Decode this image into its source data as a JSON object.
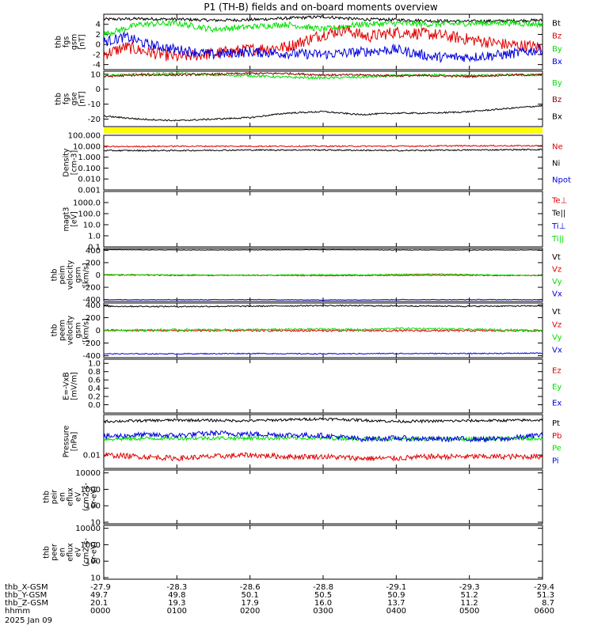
{
  "title": "P1 (TH-B) fields and on-board moments overview",
  "colors": {
    "black": "#000000",
    "red": "#e00000",
    "green": "#00e000",
    "blue": "#0000e0",
    "darkred": "#8b0000",
    "yellow": "#ffff00"
  },
  "chart_data": [
    {
      "type": "line",
      "ylabel": [
        "thb",
        "fgs",
        "gsm",
        "[nT]"
      ],
      "ylim": [
        -5,
        6
      ],
      "yticks": [
        -4,
        -2,
        0,
        2,
        4
      ],
      "xlim": [
        0,
        6
      ],
      "legend": [
        {
          "name": "Bt",
          "color": "black"
        },
        {
          "name": "Bz",
          "color": "red"
        },
        {
          "name": "By",
          "color": "green"
        },
        {
          "name": "Bx",
          "color": "blue"
        }
      ],
      "series": [
        {
          "name": "Bt",
          "color": "black",
          "x": [
            0,
            0.5,
            1,
            1.5,
            2,
            2.5,
            3,
            3.5,
            4,
            4.5,
            5,
            5.5,
            6
          ],
          "y": [
            5.0,
            5.1,
            5.0,
            4.8,
            4.9,
            5.2,
            5.5,
            5.0,
            4.9,
            4.7,
            4.6,
            4.7,
            4.8
          ],
          "noise": 0.3
        },
        {
          "name": "Bz",
          "color": "red",
          "x": [
            0,
            0.3,
            0.6,
            1,
            1.5,
            2,
            2.5,
            3,
            3.3,
            3.6,
            4,
            4.5,
            5,
            5.5,
            6
          ],
          "y": [
            -2.0,
            -0.5,
            -1.5,
            -2.5,
            -1.8,
            -1.0,
            -0.5,
            2.0,
            3.0,
            1.5,
            2.5,
            2.0,
            1.0,
            0.0,
            -0.5
          ],
          "noise": 1.2
        },
        {
          "name": "By",
          "color": "green",
          "x": [
            0,
            0.5,
            1,
            1.5,
            2,
            2.5,
            3,
            3.5,
            4,
            4.5,
            5,
            5.5,
            6
          ],
          "y": [
            2.0,
            4.0,
            4.2,
            3.0,
            3.5,
            4.0,
            3.0,
            4.0,
            4.2,
            4.0,
            4.2,
            4.3,
            4.0
          ],
          "noise": 0.6
        },
        {
          "name": "Bx",
          "color": "blue",
          "x": [
            0,
            0.3,
            0.6,
            1,
            1.5,
            2,
            2.5,
            3,
            3.5,
            4,
            4.5,
            5,
            5.5,
            6
          ],
          "y": [
            0.5,
            1.5,
            0.0,
            -1.0,
            -2.0,
            -1.5,
            -1.8,
            -2.0,
            -1.5,
            -1.0,
            -2.5,
            -2.5,
            -2.0,
            -1.0
          ],
          "noise": 1.0
        }
      ]
    },
    {
      "type": "line",
      "ylabel": [
        "thb",
        "fgs",
        "gse",
        "[nT]"
      ],
      "ylim": [
        -25,
        12
      ],
      "yticks": [
        -20,
        -10,
        0,
        10
      ],
      "xlim": [
        0,
        6
      ],
      "legend": [
        {
          "name": "By",
          "color": "green"
        },
        {
          "name": "Bz",
          "color": "darkred"
        },
        {
          "name": "Bx",
          "color": "black"
        }
      ],
      "series": [
        {
          "name": "By",
          "color": "green",
          "x": [
            0,
            0.5,
            1,
            1.5,
            2,
            2.5,
            3,
            3.5,
            4,
            4.5,
            5,
            5.5,
            6
          ],
          "y": [
            9.0,
            10.0,
            10.5,
            9.5,
            9.0,
            8.0,
            7.5,
            8.0,
            9.0,
            9.5,
            9.0,
            9.5,
            9.5
          ],
          "noise": 0.8
        },
        {
          "name": "Bz",
          "color": "darkred",
          "x": [
            0,
            0.5,
            1,
            1.5,
            2,
            2.5,
            3,
            3.5,
            4,
            4.5,
            5,
            5.5,
            6
          ],
          "y": [
            8.5,
            9.5,
            9.5,
            10.0,
            10.5,
            10.5,
            9.5,
            9.5,
            9.0,
            9.0,
            8.5,
            9.5,
            9.5
          ],
          "noise": 0.7
        },
        {
          "name": "Bx",
          "color": "black",
          "x": [
            0,
            0.5,
            1,
            1.5,
            2,
            2.5,
            3,
            3.5,
            4,
            4.5,
            5,
            5.5,
            6
          ],
          "y": [
            -18,
            -20,
            -21,
            -20,
            -19,
            -16,
            -15,
            -17,
            -16,
            -16,
            -15,
            -13,
            -11
          ],
          "noise": 0.5
        }
      ]
    },
    {
      "type": "line",
      "scale": "log",
      "ylabel": [
        "Density",
        "[cm-3]"
      ],
      "ylim": [
        0.001,
        100
      ],
      "ytick_labels": [
        "0.001",
        "0.010",
        "0.100",
        "1.000",
        "10.000",
        "100.000"
      ],
      "xlim": [
        0,
        6
      ],
      "legend": [
        {
          "name": "Ne",
          "color": "red"
        },
        {
          "name": "Ni",
          "color": "black"
        },
        {
          "name": "Npot",
          "color": "blue"
        }
      ],
      "series": [
        {
          "name": "Ne",
          "color": "red",
          "x": [
            0,
            1,
            2,
            3,
            4,
            5,
            6
          ],
          "y": [
            9,
            10,
            10,
            10,
            10,
            11,
            11
          ],
          "noise": 0.06
        },
        {
          "name": "Ni",
          "color": "black",
          "x": [
            0,
            1,
            2,
            3,
            4,
            5,
            6
          ],
          "y": [
            4,
            4,
            4.5,
            4.5,
            4,
            4.5,
            5
          ],
          "noise": 0.06
        }
      ]
    },
    {
      "type": "line",
      "scale": "log",
      "ylabel": [
        "magt3",
        "[eV]"
      ],
      "ylim": [
        0.1,
        10000
      ],
      "ytick_labels": [
        "0.1",
        "1.0",
        "10.0",
        "100.0",
        "1000.0"
      ],
      "xlim": [
        0,
        6
      ],
      "legend": [
        {
          "name": "Te⊥",
          "color": "red"
        },
        {
          "name": "Te||",
          "color": "black"
        },
        {
          "name": "Ti⊥",
          "color": "blue"
        },
        {
          "name": "Ti||",
          "color": "green"
        }
      ],
      "series": []
    },
    {
      "type": "line",
      "ylabel": [
        "thb",
        "peim",
        "velocity",
        "gsm",
        "[km/s]"
      ],
      "ylim": [
        -430,
        430
      ],
      "yticks": [
        -400,
        -200,
        0,
        200,
        400
      ],
      "xlim": [
        0,
        6
      ],
      "legend": [
        {
          "name": "Vt",
          "color": "black"
        },
        {
          "name": "Vz",
          "color": "red"
        },
        {
          "name": "Vy",
          "color": "green"
        },
        {
          "name": "Vx",
          "color": "blue"
        }
      ],
      "series": [
        {
          "name": "Vt",
          "color": "black",
          "x": [
            0,
            1,
            2,
            3,
            4,
            5,
            6
          ],
          "y": [
            410,
            405,
            405,
            410,
            405,
            405,
            405
          ],
          "noise": 4
        },
        {
          "name": "Vz",
          "color": "red",
          "x": [
            0,
            1,
            2,
            3,
            4,
            5,
            6
          ],
          "y": [
            0,
            -5,
            -5,
            -10,
            -5,
            -5,
            -10
          ],
          "noise": 8
        },
        {
          "name": "Vy",
          "color": "green",
          "x": [
            0,
            1,
            2,
            3,
            3.5,
            4,
            4.5,
            5,
            6
          ],
          "y": [
            5,
            0,
            -5,
            5,
            0,
            10,
            15,
            5,
            -10
          ],
          "noise": 8
        },
        {
          "name": "Vx",
          "color": "blue",
          "x": [
            0,
            1,
            2,
            3,
            4,
            5,
            6
          ],
          "y": [
            -400,
            -402,
            -400,
            -405,
            -400,
            -400,
            -400
          ],
          "noise": 5
        }
      ]
    },
    {
      "type": "line",
      "ylabel": [
        "thb",
        "peem",
        "velocity",
        "gsm",
        "[km/s]"
      ],
      "ylim": [
        -430,
        430
      ],
      "yticks": [
        -400,
        -200,
        0,
        200,
        400
      ],
      "xlim": [
        0,
        6
      ],
      "legend": [
        {
          "name": "Vt",
          "color": "black"
        },
        {
          "name": "Vz",
          "color": "red"
        },
        {
          "name": "Vy",
          "color": "green"
        },
        {
          "name": "Vx",
          "color": "blue"
        }
      ],
      "series": [
        {
          "name": "Vt",
          "color": "black",
          "x": [
            0,
            1,
            2,
            3,
            4,
            5,
            6
          ],
          "y": [
            380,
            375,
            380,
            390,
            385,
            380,
            385
          ],
          "noise": 10
        },
        {
          "name": "Vz",
          "color": "red",
          "x": [
            0,
            1,
            2,
            3,
            4,
            5,
            6
          ],
          "y": [
            0,
            -5,
            -5,
            -5,
            -5,
            -5,
            -5
          ],
          "noise": 15
        },
        {
          "name": "Vy",
          "color": "green",
          "x": [
            0,
            1,
            2,
            3,
            3.5,
            4,
            4.5,
            5,
            6
          ],
          "y": [
            0,
            10,
            10,
            20,
            10,
            30,
            25,
            15,
            0
          ],
          "noise": 15
        },
        {
          "name": "Vx",
          "color": "blue",
          "x": [
            0,
            1,
            2,
            3,
            4,
            5,
            6
          ],
          "y": [
            -370,
            -370,
            -365,
            -370,
            -365,
            -365,
            -360
          ],
          "noise": 8
        }
      ]
    },
    {
      "type": "line",
      "ylabel": [
        "E=-VxB",
        "[mV/m]"
      ],
      "ylim": [
        -0.2,
        1.1
      ],
      "yticks": [
        0.0,
        0.2,
        0.4,
        0.6,
        0.8,
        1.0
      ],
      "ytick_labels": [
        "0.0",
        "0.2",
        "0.4",
        "0.6",
        "0.8",
        "1.0"
      ],
      "xlim": [
        0,
        6
      ],
      "legend": [
        {
          "name": "Ez",
          "color": "red"
        },
        {
          "name": "Ey",
          "color": "green"
        },
        {
          "name": "Ex",
          "color": "blue"
        }
      ],
      "series": []
    },
    {
      "type": "line",
      "scale": "log",
      "ylabel": [
        "Pressure",
        "[nPa]"
      ],
      "ylim": [
        0.004,
        0.16
      ],
      "ytick_labels": [
        "0.01"
      ],
      "xlim": [
        0,
        6
      ],
      "legend": [
        {
          "name": "Pt",
          "color": "black"
        },
        {
          "name": "Pb",
          "color": "red"
        },
        {
          "name": "Pe",
          "color": "green"
        },
        {
          "name": "Pi",
          "color": "blue"
        }
      ],
      "series": [
        {
          "name": "Pt",
          "color": "black",
          "x": [
            0,
            1,
            2,
            3,
            4,
            5,
            6
          ],
          "y": [
            0.1,
            0.11,
            0.105,
            0.12,
            0.1,
            0.105,
            0.11
          ],
          "noise": 0.04
        },
        {
          "name": "Pb",
          "color": "red",
          "x": [
            0,
            0.5,
            1,
            1.5,
            2,
            2.5,
            3,
            3.5,
            4,
            4.5,
            5,
            5.5,
            6
          ],
          "y": [
            0.01,
            0.009,
            0.008,
            0.009,
            0.01,
            0.009,
            0.009,
            0.008,
            0.008,
            0.009,
            0.009,
            0.009,
            0.009
          ],
          "noise": 0.08
        },
        {
          "name": "Pe",
          "color": "green",
          "x": [
            0,
            1,
            2,
            3,
            4,
            5,
            6
          ],
          "y": [
            0.03,
            0.032,
            0.032,
            0.032,
            0.03,
            0.03,
            0.032
          ],
          "noise": 0.06
        },
        {
          "name": "Pi",
          "color": "blue",
          "x": [
            0,
            0.5,
            1,
            1.5,
            2,
            2.5,
            3,
            3.5,
            4,
            4.5,
            5,
            5.5,
            6
          ],
          "y": [
            0.035,
            0.04,
            0.038,
            0.045,
            0.042,
            0.04,
            0.038,
            0.03,
            0.032,
            0.03,
            0.03,
            0.03,
            0.04
          ],
          "noise": 0.08
        }
      ]
    },
    {
      "type": "heatmap",
      "scale": "log",
      "ylabel": [
        "thb",
        "peir",
        "en",
        "eflux",
        "eV",
        "(cm2-s-",
        "sr-eV)"
      ],
      "ylim": [
        8,
        15000
      ],
      "ytick_labels": [
        "10",
        "100",
        "1000",
        "10000"
      ],
      "xlim": [
        0,
        6
      ],
      "series": []
    },
    {
      "type": "heatmap",
      "scale": "log",
      "ylabel": [
        "thb",
        "peer",
        "en",
        "eflux",
        "eV",
        "(cm2-s-",
        "sr-eV)"
      ],
      "ylim": [
        8,
        15000
      ],
      "ytick_labels": [
        "10",
        "100",
        "1000",
        "10000"
      ],
      "xlim": [
        0,
        6
      ],
      "series": []
    }
  ],
  "xaxis": {
    "row_labels": [
      "thb_X-GSM",
      "thb_Y-GSM",
      "thb_Z-GSM",
      "hhmm",
      "2025 Jan 09"
    ],
    "columns": [
      [
        "-27.9",
        "49.7",
        "20.1",
        "0000"
      ],
      [
        "-28.3",
        "49.8",
        "19.3",
        "0100"
      ],
      [
        "-28.6",
        "50.1",
        "17.9",
        "0200"
      ],
      [
        "-28.8",
        "50.5",
        "16.0",
        "0300"
      ],
      [
        "-29.1",
        "50.9",
        "13.7",
        "0400"
      ],
      [
        "-29.3",
        "51.2",
        "11.2",
        "0500"
      ],
      [
        "-29.4",
        "51.3",
        "8.7",
        "0600"
      ]
    ]
  }
}
